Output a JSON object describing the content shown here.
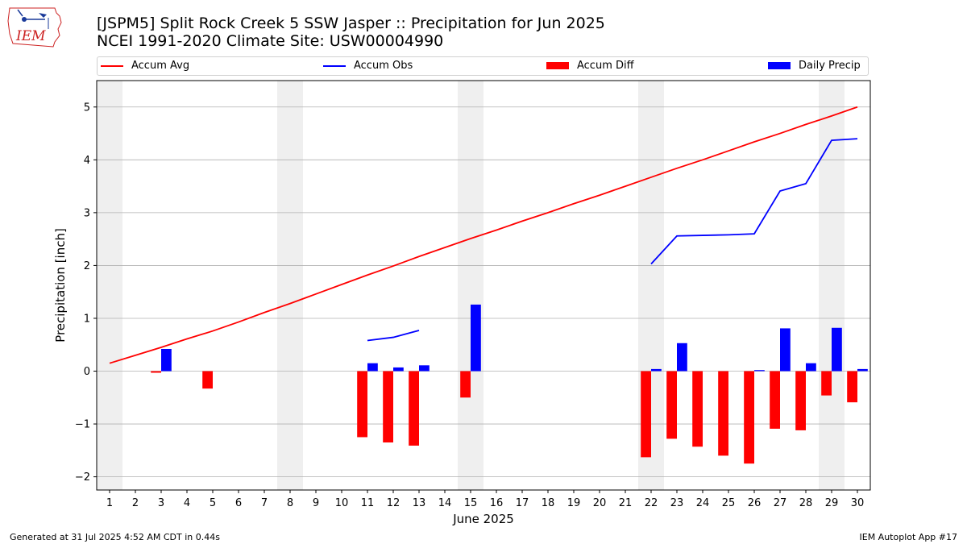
{
  "header": {
    "title_line1": "[JSPM5] Split Rock Creek 5 SSW Jasper :: Precipitation for Jun 2025",
    "title_line2": "NCEI 1991-2020 Climate Site: USW00004990",
    "logo_text": "IEM"
  },
  "footer": {
    "left": "Generated at 31 Jul 2025 4:52 AM CDT in 0.44s",
    "right": "IEM Autoplot App #17"
  },
  "colors": {
    "avg": "#ff0000",
    "obs": "#0000ff",
    "diff": "#ff0000",
    "daily": "#0000ff",
    "weekend": "#efefef",
    "grid": "#b0b0b0"
  },
  "chart_data": {
    "type": "bar",
    "title": "[JSPM5] Split Rock Creek 5 SSW Jasper :: Precipitation for Jun 2025",
    "subtitle": "NCEI 1991-2020 Climate Site: USW00004990",
    "xlabel": "June 2025",
    "ylabel": "Precipitation [inch]",
    "ylim": [
      -2.25,
      5.5
    ],
    "yticks": [
      -2,
      -1,
      0,
      1,
      2,
      3,
      4,
      5
    ],
    "ytick_labels": [
      "−2",
      "−1",
      "0",
      "1",
      "2",
      "3",
      "4",
      "5"
    ],
    "xlim": [
      0.5,
      30.5
    ],
    "days": [
      1,
      2,
      3,
      4,
      5,
      6,
      7,
      8,
      9,
      10,
      11,
      12,
      13,
      14,
      15,
      16,
      17,
      18,
      19,
      20,
      21,
      22,
      23,
      24,
      25,
      26,
      27,
      28,
      29,
      30
    ],
    "day_labels": [
      "1",
      "2",
      "3",
      "4",
      "5",
      "6",
      "7",
      "8",
      "9",
      "10",
      "11",
      "12",
      "13",
      "14",
      "15",
      "16",
      "17",
      "18",
      "19",
      "20",
      "21",
      "22",
      "23",
      "24",
      "25",
      "26",
      "27",
      "28",
      "29",
      "30"
    ],
    "grid": "horizontal",
    "legend_position": "top",
    "weekend_day_pairs": [
      [
        0,
        1
      ],
      [
        7,
        8
      ],
      [
        14,
        15
      ],
      [
        21,
        22
      ],
      [
        28,
        29
      ]
    ],
    "series": [
      {
        "name": "Accum Avg",
        "kind": "line",
        "x": [
          1,
          2,
          3,
          4,
          5,
          6,
          7,
          8,
          9,
          10,
          11,
          12,
          13,
          14,
          15,
          16,
          17,
          18,
          19,
          20,
          21,
          22,
          23,
          24,
          25,
          26,
          27,
          28,
          29,
          30
        ],
        "values": [
          0.15,
          0.3,
          0.45,
          0.61,
          0.76,
          0.93,
          1.11,
          1.28,
          1.46,
          1.64,
          1.82,
          1.99,
          2.17,
          2.34,
          2.51,
          2.67,
          2.84,
          3.0,
          3.17,
          3.33,
          3.5,
          3.67,
          3.84,
          4.0,
          4.17,
          4.34,
          4.5,
          4.67,
          4.83,
          5.0
        ]
      },
      {
        "name": "Accum Obs",
        "kind": "line",
        "segments": [
          {
            "x": [
              11,
              12,
              13
            ],
            "values": [
              0.58,
              0.64,
              0.77
            ]
          },
          {
            "x": [
              22,
              23,
              24,
              25,
              26,
              27,
              28,
              29,
              30
            ],
            "values": [
              2.03,
              2.56,
              2.57,
              2.58,
              2.6,
              3.41,
              3.55,
              4.37,
              4.4
            ]
          }
        ]
      },
      {
        "name": "Accum Diff",
        "kind": "bar",
        "x": [
          3,
          5,
          11,
          12,
          13,
          15,
          22,
          23,
          24,
          25,
          26,
          27,
          28,
          29,
          30
        ],
        "values": [
          -0.03,
          -0.33,
          -1.25,
          -1.35,
          -1.41,
          -0.5,
          -1.63,
          -1.28,
          -1.43,
          -1.6,
          -1.75,
          -1.09,
          -1.12,
          -0.46,
          -0.59
        ]
      },
      {
        "name": "Daily Precip",
        "kind": "bar",
        "x": [
          3,
          11,
          12,
          13,
          15,
          22,
          23,
          26,
          27,
          28,
          29,
          30
        ],
        "values": [
          0.42,
          0.15,
          0.07,
          0.11,
          1.26,
          0.04,
          0.53,
          0.02,
          0.81,
          0.15,
          0.82,
          0.04
        ]
      }
    ]
  }
}
